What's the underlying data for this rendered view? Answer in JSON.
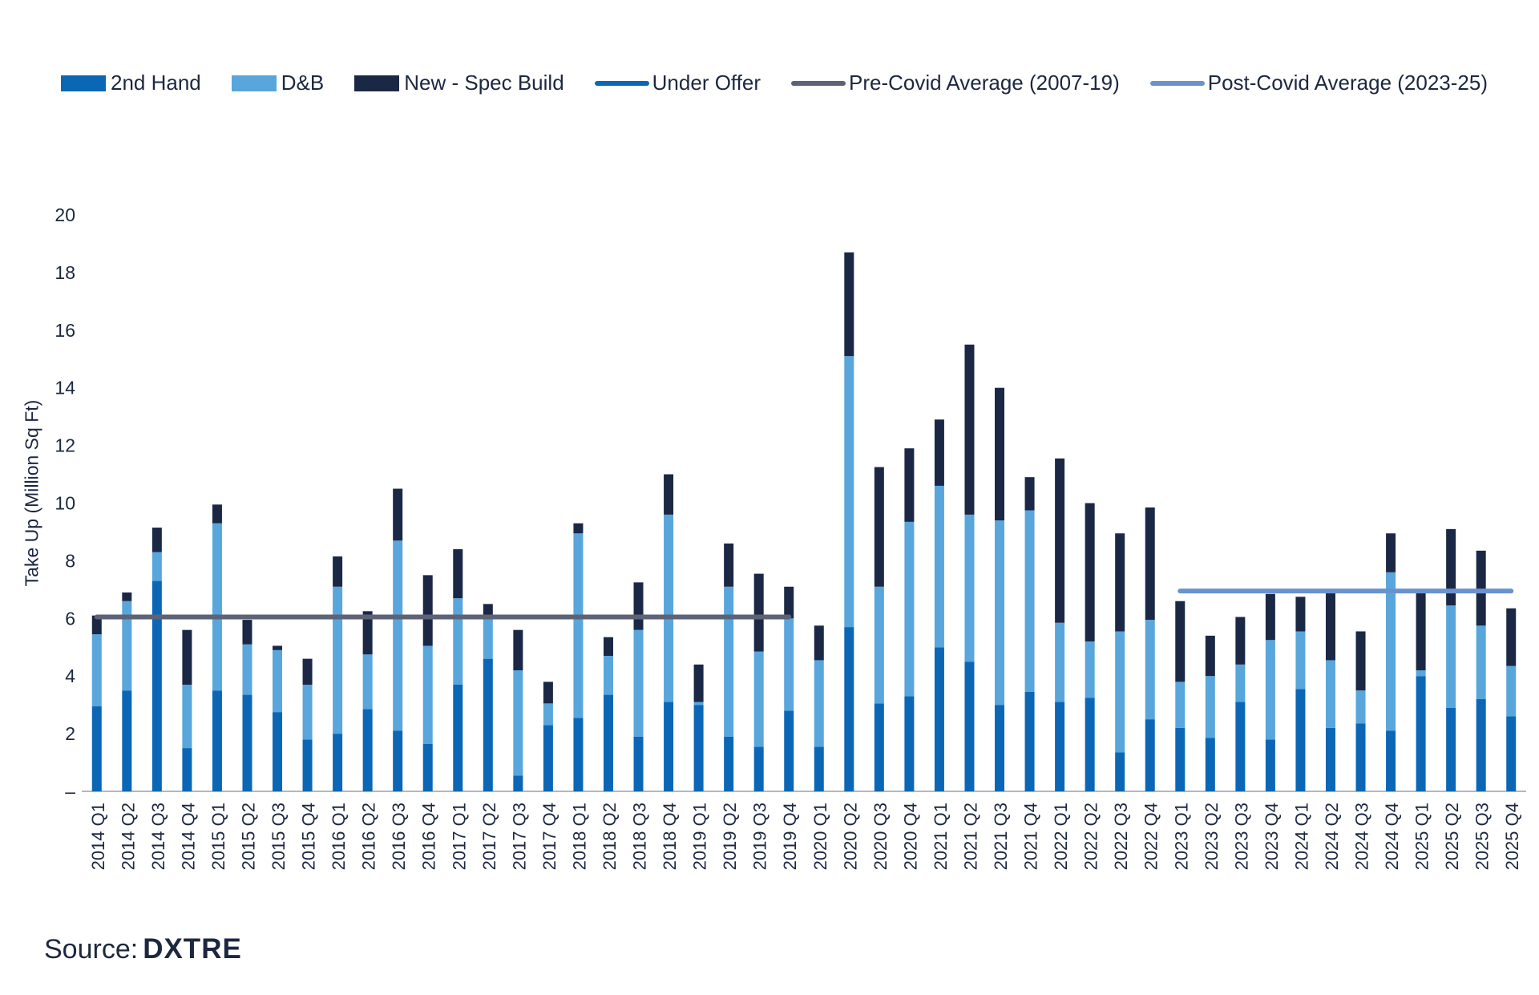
{
  "legend": {
    "second_hand": "2nd Hand",
    "db": "D&B",
    "new_spec": "New - Spec Build",
    "under_offer": "Under Offer",
    "pre_covid": "Pre-Covid Average (2007-19)",
    "post_covid": "Post-Covid Average (2023-25)"
  },
  "colors": {
    "second_hand": "#0b67b5",
    "db": "#58a6db",
    "new_spec": "#1b2845",
    "under_offer": "#0b67b5",
    "pre_covid": "#5e6277",
    "post_covid": "#6a92cf",
    "axis": "#b4b7c2",
    "text": "#1c2740"
  },
  "source": {
    "label": "Source:",
    "brand": "DXTRE"
  },
  "chart_data": {
    "type": "bar",
    "stacked": true,
    "title": "",
    "xlabel": "",
    "ylabel": "Take Up (Million Sq Ft)",
    "ylim": [
      0,
      20
    ],
    "yticks": [
      0,
      2,
      4,
      6,
      8,
      10,
      12,
      14,
      16,
      18,
      20
    ],
    "ytick_labels": [
      "–",
      "2",
      "4",
      "6",
      "8",
      "10",
      "12",
      "14",
      "16",
      "18",
      "20"
    ],
    "categories": [
      "2014 Q1",
      "2014 Q2",
      "2014 Q3",
      "2014 Q4",
      "2015 Q1",
      "2015 Q2",
      "2015 Q3",
      "2015 Q4",
      "2016 Q1",
      "2016 Q2",
      "2016 Q3",
      "2016 Q4",
      "2017 Q1",
      "2017 Q2",
      "2017 Q3",
      "2017 Q4",
      "2018 Q1",
      "2018 Q2",
      "2018 Q3",
      "2018 Q4",
      "2019 Q1",
      "2019 Q2",
      "2019 Q3",
      "2019 Q4",
      "2020 Q1",
      "2020 Q2",
      "2020 Q3",
      "2020 Q4",
      "2021 Q1",
      "2021 Q2",
      "2021 Q3",
      "2021 Q4",
      "2022 Q1",
      "2022 Q2",
      "2022 Q3",
      "2022 Q4",
      "2023 Q1",
      "2023 Q2",
      "2023 Q3",
      "2023 Q4",
      "2024 Q1",
      "2024 Q2",
      "2024 Q3",
      "2024 Q4",
      "2025 Q1",
      "2025 Q2",
      "2025 Q3",
      "2025 Q4"
    ],
    "series": [
      {
        "name": "2nd Hand",
        "key": "second_hand",
        "values": [
          2.95,
          3.5,
          7.3,
          1.5,
          3.5,
          3.35,
          2.75,
          1.8,
          2.0,
          2.85,
          2.1,
          1.65,
          3.7,
          4.6,
          0.55,
          2.3,
          2.55,
          3.35,
          1.9,
          3.1,
          3.0,
          1.9,
          1.55,
          2.8,
          1.55,
          5.7,
          3.05,
          3.3,
          5.0,
          4.5,
          3.0,
          3.45,
          3.1,
          3.25,
          1.35,
          2.5,
          2.2,
          1.85,
          3.1,
          1.8,
          3.55,
          2.2,
          2.35,
          2.1,
          4.0,
          2.9,
          3.2,
          2.6
        ]
      },
      {
        "name": "D&B",
        "key": "db",
        "values": [
          2.5,
          3.1,
          1.0,
          2.2,
          5.8,
          1.75,
          2.15,
          1.9,
          5.1,
          1.9,
          6.6,
          3.4,
          3.0,
          1.5,
          3.65,
          0.75,
          6.4,
          1.35,
          3.7,
          6.5,
          0.1,
          5.2,
          3.3,
          3.2,
          3.0,
          9.4,
          4.05,
          6.05,
          5.6,
          5.1,
          6.4,
          6.3,
          2.75,
          1.95,
          4.2,
          3.45,
          1.6,
          2.15,
          1.3,
          3.45,
          2.0,
          2.35,
          1.15,
          5.5,
          0.2,
          3.55,
          2.55,
          1.75
        ]
      },
      {
        "name": "New - Spec Build",
        "key": "new_spec",
        "values": [
          0.65,
          0.3,
          0.85,
          1.9,
          0.65,
          0.85,
          0.15,
          0.9,
          1.05,
          1.5,
          1.8,
          2.45,
          1.7,
          0.4,
          1.4,
          0.75,
          0.35,
          0.65,
          1.65,
          1.4,
          1.3,
          1.5,
          2.7,
          1.1,
          1.2,
          3.6,
          4.15,
          2.55,
          2.3,
          5.9,
          4.6,
          1.15,
          5.7,
          4.8,
          3.4,
          3.9,
          2.8,
          1.4,
          1.65,
          1.6,
          1.2,
          2.35,
          2.05,
          1.35,
          2.8,
          2.65,
          2.6,
          2.0
        ]
      }
    ],
    "reference_lines": [
      {
        "name": "Pre-Covid Average (2007-19)",
        "key": "pre_covid",
        "value": 6.05,
        "from": "2014 Q1",
        "to": "2019 Q4"
      },
      {
        "name": "Post-Covid Average (2023-25)",
        "key": "post_covid",
        "value": 6.95,
        "from": "2023 Q1",
        "to": "2025 Q4"
      }
    ],
    "legend_position": "top"
  }
}
